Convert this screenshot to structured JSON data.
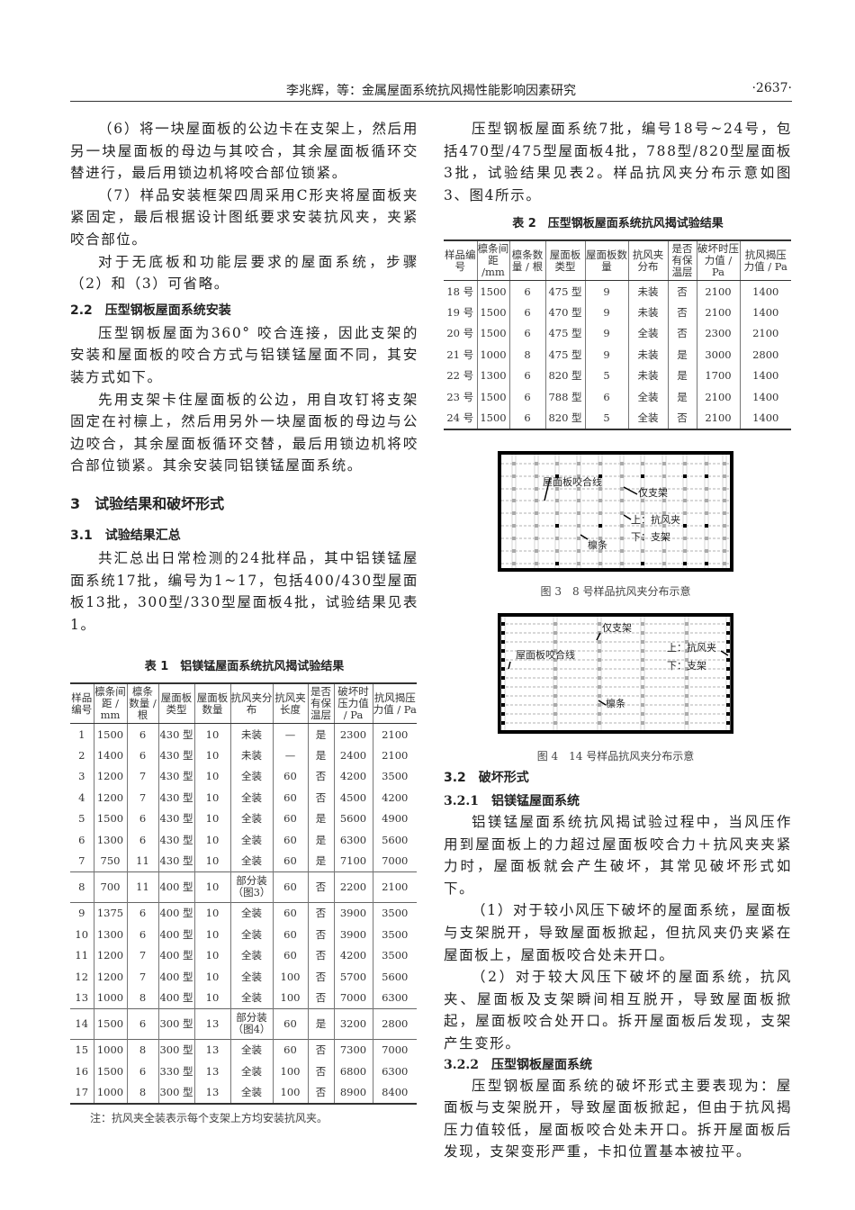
{
  "header": {
    "title": "李兆辉，等：金属屋面系统抗风揭性能影响因素研究",
    "page": "·2637·"
  },
  "left": {
    "p1": "（6）将一块屋面板的公边卡在支架上，然后用另一块屋面板的母边与其咬合，其余屋面板循环交替进行，最后用锁边机将咬合部位锁紧。",
    "p2": "（7）样品安装框架四周采用C形夹将屋面板夹紧固定，最后根据设计图纸要求安装抗风夹，夹紧咬合部位。",
    "p3": "对于无底板和功能层要求的屋面系统，步骤（2）和（3）可省略。",
    "h22": "2.2　压型钢板屋面系统安装",
    "p4": "压型钢板屋面为360° 咬合连接，因此支架的安装和屋面板的咬合方式与铝镁锰屋面不同，其安装方式如下。",
    "p5": "先用支架卡住屋面板的公边，用自攻钉将支架固定在衬檩上，然后用另外一块屋面板的母边与公边咬合，其余屋面板循环交替，最后用锁边机将咬合部位锁紧。其余安装同铝镁锰屋面系统。",
    "h3": "3　试验结果和破坏形式",
    "h31": "3.1　试验结果汇总",
    "p6": "共汇总出日常检测的24批样品，其中铝镁锰屋面系统17批，编号为1~17，包括400/430型屋面板13批，300型/330型屋面板4批，试验结果见表1。"
  },
  "table1": {
    "caption": "表 1　铝镁锰屋面系统抗风揭试验结果",
    "headers": [
      "样品编号",
      "檩条间距 / mm",
      "檩条数量 / 根",
      "屋面板类型",
      "屋面板数量",
      "抗风夹分布",
      "抗风夹长度",
      "是否有保温层",
      "破坏时压力值 / Pa",
      "抗风揭压力值 / Pa"
    ],
    "rows": [
      [
        "1",
        "1500",
        "6",
        "430 型",
        "10",
        "未装",
        "—",
        "是",
        "2300",
        "2100"
      ],
      [
        "2",
        "1400",
        "6",
        "430 型",
        "10",
        "未装",
        "—",
        "是",
        "2400",
        "2100"
      ],
      [
        "3",
        "1200",
        "7",
        "430 型",
        "10",
        "全装",
        "60",
        "否",
        "4200",
        "3500"
      ],
      [
        "4",
        "1200",
        "7",
        "430 型",
        "10",
        "全装",
        "60",
        "否",
        "4500",
        "4200"
      ],
      [
        "5",
        "1500",
        "6",
        "430 型",
        "10",
        "全装",
        "60",
        "是",
        "5600",
        "4900"
      ],
      [
        "6",
        "1300",
        "6",
        "430 型",
        "10",
        "全装",
        "60",
        "是",
        "6300",
        "5600"
      ],
      [
        "7",
        "750",
        "11",
        "430 型",
        "10",
        "全装",
        "60",
        "是",
        "7100",
        "7000"
      ],
      [
        "8",
        "700",
        "11",
        "400 型",
        "10",
        "部分装（图3）",
        "60",
        "否",
        "2200",
        "2100"
      ],
      [
        "9",
        "1375",
        "6",
        "400 型",
        "10",
        "全装",
        "60",
        "否",
        "3900",
        "3500"
      ],
      [
        "10",
        "1300",
        "6",
        "400 型",
        "10",
        "全装",
        "60",
        "否",
        "3900",
        "3500"
      ],
      [
        "11",
        "1200",
        "7",
        "400 型",
        "10",
        "全装",
        "60",
        "否",
        "4200",
        "3500"
      ],
      [
        "12",
        "1200",
        "7",
        "400 型",
        "10",
        "全装",
        "100",
        "否",
        "5700",
        "5600"
      ],
      [
        "13",
        "1000",
        "8",
        "400 型",
        "10",
        "全装",
        "100",
        "否",
        "7000",
        "6300"
      ],
      [
        "14",
        "1500",
        "6",
        "300 型",
        "13",
        "部分装（图4）",
        "60",
        "是",
        "3200",
        "2800"
      ],
      [
        "15",
        "1000",
        "8",
        "300 型",
        "13",
        "全装",
        "60",
        "否",
        "7300",
        "7000"
      ],
      [
        "16",
        "1500",
        "6",
        "330 型",
        "13",
        "全装",
        "100",
        "否",
        "6800",
        "6300"
      ],
      [
        "17",
        "1000",
        "8",
        "300 型",
        "13",
        "全装",
        "100",
        "否",
        "8900",
        "8400"
      ]
    ],
    "note": "注：抗风夹全装表示每个支架上方均安装抗风夹。"
  },
  "right": {
    "p1": "压型钢板屋面系统7批，编号18号~24号，包括470型/475型屋面板4批，788型/820型屋面板3批，试验结果见表2。样品抗风夹分布示意如图3、图4所示。",
    "h32": "3.2　破坏形式",
    "h321": "3.2.1　铝镁锰屋面系统",
    "p2": "铝镁锰屋面系统抗风揭试验过程中，当风压作用到屋面板上的力超过屋面板咬合力＋抗风夹夹紧力时，屋面板就会产生破坏，其常见破坏形式如下。",
    "p3": "（1）对于较小风压下破坏的屋面系统，屋面板与支架脱开，导致屋面板掀起，但抗风夹仍夹紧在屋面板上，屋面板咬合处未开口。",
    "p4": "（2）对于较大风压下破坏的屋面系统，抗风夹、屋面板及支架瞬间相互脱开，导致屋面板掀起，屋面板咬合处开口。拆开屋面板后发现，支架产生变形。",
    "h322": "3.2.2　压型钢板屋面系统",
    "p5": "压型钢板屋面系统的破坏形式主要表现为：屋面板与支架脱开，导致屋面板掀起，但由于抗风揭压力值较低，屋面板咬合处未开口。拆开屋面板后发现，支架变形严重，卡扣位置基本被拉平。"
  },
  "table2": {
    "caption": "表 2　压型钢板屋面系统抗风揭试验结果",
    "headers": [
      "样品编号",
      "檩条间距 /mm",
      "檩条数量 / 根",
      "屋面板类型",
      "屋面板数量",
      "抗风夹分布",
      "是否有保温层",
      "破坏时压力值 / Pa",
      "抗风揭压力值 / Pa"
    ],
    "rows": [
      [
        "18 号",
        "1500",
        "6",
        "475 型",
        "9",
        "未装",
        "否",
        "2100",
        "1400"
      ],
      [
        "19 号",
        "1500",
        "6",
        "470 型",
        "9",
        "未装",
        "否",
        "2100",
        "1400"
      ],
      [
        "20 号",
        "1500",
        "6",
        "475 型",
        "9",
        "全装",
        "否",
        "2300",
        "2100"
      ],
      [
        "21 号",
        "1000",
        "8",
        "475 型",
        "9",
        "未装",
        "是",
        "3000",
        "2800"
      ],
      [
        "22 号",
        "1300",
        "6",
        "820 型",
        "5",
        "未装",
        "是",
        "1700",
        "1400"
      ],
      [
        "23 号",
        "1500",
        "6",
        "788 型",
        "6",
        "全装",
        "是",
        "2100",
        "1400"
      ],
      [
        "24 号",
        "1500",
        "6",
        "820 型",
        "5",
        "全装",
        "否",
        "2100",
        "1400"
      ]
    ]
  },
  "fig3": {
    "caption": "图 3　8 号样品抗风夹分布示意",
    "labels": {
      "seam": "屋面板咬合线",
      "bracket": "仅支架",
      "clip_top": "上：抗风夹",
      "clip_bottom": "下：支架",
      "purlin": "檩条"
    }
  },
  "fig4": {
    "caption": "图 4　14 号样品抗风夹分布示意",
    "labels": {
      "seam": "屋面板咬合线",
      "bracket": "仅支架",
      "clip_top": "上：抗风夹",
      "clip_bottom": "下：支架",
      "purlin": "檩条"
    }
  }
}
